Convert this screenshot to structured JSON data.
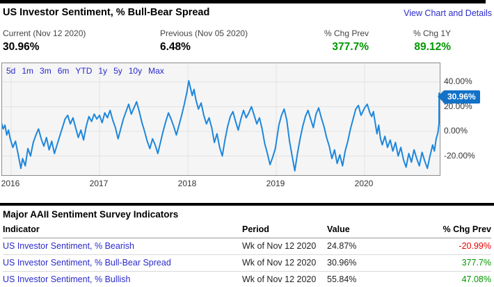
{
  "header": {
    "title": "US Investor Sentiment, % Bull-Bear Spread",
    "link": "View Chart and Details"
  },
  "stats": [
    {
      "label": "Current (Nov 12 2020)",
      "value": "30.96%",
      "color": "#000000"
    },
    {
      "label": "Previous (Nov 05 2020)",
      "value": "6.48%",
      "color": "#000000"
    },
    {
      "label": "% Chg Prev",
      "value": "377.7%",
      "color": "#009700"
    },
    {
      "label": "% Chg 1Y",
      "value": "89.12%",
      "color": "#009700"
    }
  ],
  "chart": {
    "range_buttons": [
      "5d",
      "1m",
      "3m",
      "6m",
      "YTD",
      "1y",
      "5y",
      "10y",
      "Max"
    ],
    "current_badge": "30.96%",
    "badge_color": "#1372c8"
  },
  "chart_data": {
    "type": "line",
    "title": "US Investor Sentiment, % Bull-Bear Spread",
    "series_name": "Bull-Bear Spread %",
    "line_color": "#1e87db",
    "background": "#f5f5f5",
    "grid": true,
    "legend_position": "none",
    "xlim": [
      2015.89,
      2020.87
    ],
    "ylim": [
      -36,
      56
    ],
    "x_ticks": [
      {
        "value": 2016,
        "label": "2016"
      },
      {
        "value": 2017,
        "label": "2017"
      },
      {
        "value": 2018,
        "label": "2018"
      },
      {
        "value": 2019,
        "label": "2019"
      },
      {
        "value": 2020,
        "label": "2020"
      }
    ],
    "y_ticks": [
      {
        "value": 40,
        "label": "40.00%"
      },
      {
        "value": 20,
        "label": "20.00%"
      },
      {
        "value": 0,
        "label": "0.00%"
      },
      {
        "value": -20,
        "label": "-20.00%"
      }
    ],
    "last_point": {
      "x": 2020.86,
      "y": 30.96,
      "label": "30.96%"
    },
    "points": [
      [
        2015.89,
        7
      ],
      [
        2015.91,
        2
      ],
      [
        2015.93,
        5
      ],
      [
        2015.95,
        -3
      ],
      [
        2015.97,
        1
      ],
      [
        2015.99,
        -6
      ],
      [
        2016.02,
        -13
      ],
      [
        2016.05,
        -8
      ],
      [
        2016.08,
        -19
      ],
      [
        2016.11,
        -30
      ],
      [
        2016.13,
        -22
      ],
      [
        2016.16,
        -28
      ],
      [
        2016.19,
        -14
      ],
      [
        2016.22,
        -20
      ],
      [
        2016.25,
        -9
      ],
      [
        2016.28,
        -3
      ],
      [
        2016.31,
        2
      ],
      [
        2016.34,
        -6
      ],
      [
        2016.37,
        -12
      ],
      [
        2016.4,
        -5
      ],
      [
        2016.43,
        -15
      ],
      [
        2016.46,
        -8
      ],
      [
        2016.49,
        -18
      ],
      [
        2016.52,
        -11
      ],
      [
        2016.55,
        -4
      ],
      [
        2016.58,
        3
      ],
      [
        2016.61,
        10
      ],
      [
        2016.64,
        13
      ],
      [
        2016.67,
        6
      ],
      [
        2016.7,
        11
      ],
      [
        2016.73,
        3
      ],
      [
        2016.76,
        -5
      ],
      [
        2016.79,
        1
      ],
      [
        2016.82,
        -7
      ],
      [
        2016.85,
        4
      ],
      [
        2016.88,
        12
      ],
      [
        2016.91,
        8
      ],
      [
        2016.94,
        14
      ],
      [
        2016.97,
        10
      ],
      [
        2017.0,
        13
      ],
      [
        2017.03,
        7
      ],
      [
        2017.06,
        15
      ],
      [
        2017.09,
        11
      ],
      [
        2017.12,
        17
      ],
      [
        2017.15,
        9
      ],
      [
        2017.18,
        3
      ],
      [
        2017.21,
        -6
      ],
      [
        2017.24,
        2
      ],
      [
        2017.27,
        10
      ],
      [
        2017.3,
        16
      ],
      [
        2017.33,
        22
      ],
      [
        2017.36,
        14
      ],
      [
        2017.39,
        19
      ],
      [
        2017.42,
        24
      ],
      [
        2017.45,
        16
      ],
      [
        2017.48,
        7
      ],
      [
        2017.51,
        0
      ],
      [
        2017.54,
        -8
      ],
      [
        2017.57,
        -14
      ],
      [
        2017.6,
        -6
      ],
      [
        2017.63,
        -11
      ],
      [
        2017.66,
        -18
      ],
      [
        2017.69,
        -9
      ],
      [
        2017.72,
        0
      ],
      [
        2017.75,
        8
      ],
      [
        2017.78,
        15
      ],
      [
        2017.81,
        10
      ],
      [
        2017.84,
        4
      ],
      [
        2017.87,
        -3
      ],
      [
        2017.9,
        5
      ],
      [
        2017.93,
        13
      ],
      [
        2017.96,
        22
      ],
      [
        2017.99,
        32
      ],
      [
        2018.01,
        41
      ],
      [
        2018.03,
        35
      ],
      [
        2018.05,
        29
      ],
      [
        2018.07,
        34
      ],
      [
        2018.09,
        26
      ],
      [
        2018.12,
        18
      ],
      [
        2018.15,
        23
      ],
      [
        2018.18,
        13
      ],
      [
        2018.21,
        6
      ],
      [
        2018.24,
        11
      ],
      [
        2018.27,
        3
      ],
      [
        2018.3,
        -9
      ],
      [
        2018.33,
        -2
      ],
      [
        2018.36,
        -13
      ],
      [
        2018.39,
        -20
      ],
      [
        2018.42,
        -7
      ],
      [
        2018.45,
        4
      ],
      [
        2018.48,
        12
      ],
      [
        2018.51,
        16
      ],
      [
        2018.54,
        8
      ],
      [
        2018.57,
        1
      ],
      [
        2018.6,
        10
      ],
      [
        2018.63,
        17
      ],
      [
        2018.66,
        11
      ],
      [
        2018.69,
        15
      ],
      [
        2018.72,
        20
      ],
      [
        2018.75,
        13
      ],
      [
        2018.78,
        6
      ],
      [
        2018.81,
        11
      ],
      [
        2018.84,
        2
      ],
      [
        2018.87,
        -10
      ],
      [
        2018.9,
        -18
      ],
      [
        2018.93,
        -27
      ],
      [
        2018.96,
        -21
      ],
      [
        2018.99,
        -14
      ],
      [
        2019.03,
        5
      ],
      [
        2019.06,
        13
      ],
      [
        2019.09,
        18
      ],
      [
        2019.12,
        9
      ],
      [
        2019.15,
        -8
      ],
      [
        2019.18,
        -20
      ],
      [
        2019.21,
        -32
      ],
      [
        2019.24,
        -18
      ],
      [
        2019.27,
        -6
      ],
      [
        2019.3,
        4
      ],
      [
        2019.33,
        12
      ],
      [
        2019.36,
        17
      ],
      [
        2019.39,
        10
      ],
      [
        2019.42,
        3
      ],
      [
        2019.45,
        14
      ],
      [
        2019.48,
        19
      ],
      [
        2019.51,
        11
      ],
      [
        2019.54,
        4
      ],
      [
        2019.57,
        -5
      ],
      [
        2019.6,
        -12
      ],
      [
        2019.63,
        -22
      ],
      [
        2019.66,
        -15
      ],
      [
        2019.69,
        -26
      ],
      [
        2019.72,
        -19
      ],
      [
        2019.75,
        -28
      ],
      [
        2019.78,
        -16
      ],
      [
        2019.81,
        -8
      ],
      [
        2019.84,
        2
      ],
      [
        2019.87,
        10
      ],
      [
        2019.9,
        18
      ],
      [
        2019.93,
        21
      ],
      [
        2019.96,
        13
      ],
      [
        2020.0,
        19
      ],
      [
        2020.03,
        22
      ],
      [
        2020.06,
        15
      ],
      [
        2020.08,
        12
      ],
      [
        2020.1,
        16
      ],
      [
        2020.12,
        7
      ],
      [
        2020.14,
        -2
      ],
      [
        2020.16,
        5
      ],
      [
        2020.18,
        -6
      ],
      [
        2020.2,
        -11
      ],
      [
        2020.23,
        -4
      ],
      [
        2020.26,
        -13
      ],
      [
        2020.29,
        -7
      ],
      [
        2020.32,
        -16
      ],
      [
        2020.35,
        -9
      ],
      [
        2020.38,
        -20
      ],
      [
        2020.41,
        -13
      ],
      [
        2020.44,
        -23
      ],
      [
        2020.47,
        -29
      ],
      [
        2020.5,
        -18
      ],
      [
        2020.53,
        -25
      ],
      [
        2020.56,
        -15
      ],
      [
        2020.59,
        -22
      ],
      [
        2020.62,
        -28
      ],
      [
        2020.65,
        -17
      ],
      [
        2020.68,
        -24
      ],
      [
        2020.71,
        -30
      ],
      [
        2020.74,
        -20
      ],
      [
        2020.77,
        -11
      ],
      [
        2020.79,
        -16
      ],
      [
        2020.81,
        -6
      ],
      [
        2020.83,
        -1
      ],
      [
        2020.845,
        6.48
      ],
      [
        2020.86,
        30.96
      ]
    ]
  },
  "table": {
    "section_title": "Major AAII Sentiment Survey Indicators",
    "headers": [
      "Indicator",
      "Period",
      "Value",
      "% Chg Prev"
    ],
    "rows": [
      {
        "indicator": "US Investor Sentiment, % Bearish",
        "period": "Wk of Nov 12 2020",
        "value": "24.87%",
        "chg": "-20.99%",
        "chg_color": "#e80000"
      },
      {
        "indicator": "US Investor Sentiment, % Bull-Bear Spread",
        "period": "Wk of Nov 12 2020",
        "value": "30.96%",
        "chg": "377.7%",
        "chg_color": "#009700"
      },
      {
        "indicator": "US Investor Sentiment, % Bullish",
        "period": "Wk of Nov 12 2020",
        "value": "55.84%",
        "chg": "47.08%",
        "chg_color": "#009700"
      }
    ]
  },
  "colors": {
    "link_blue": "#2b2bcc",
    "chart_line_blue": "#1e87db",
    "badge_blue": "#1372c8",
    "positive_green": "#009700",
    "negative_red": "#e80000"
  }
}
